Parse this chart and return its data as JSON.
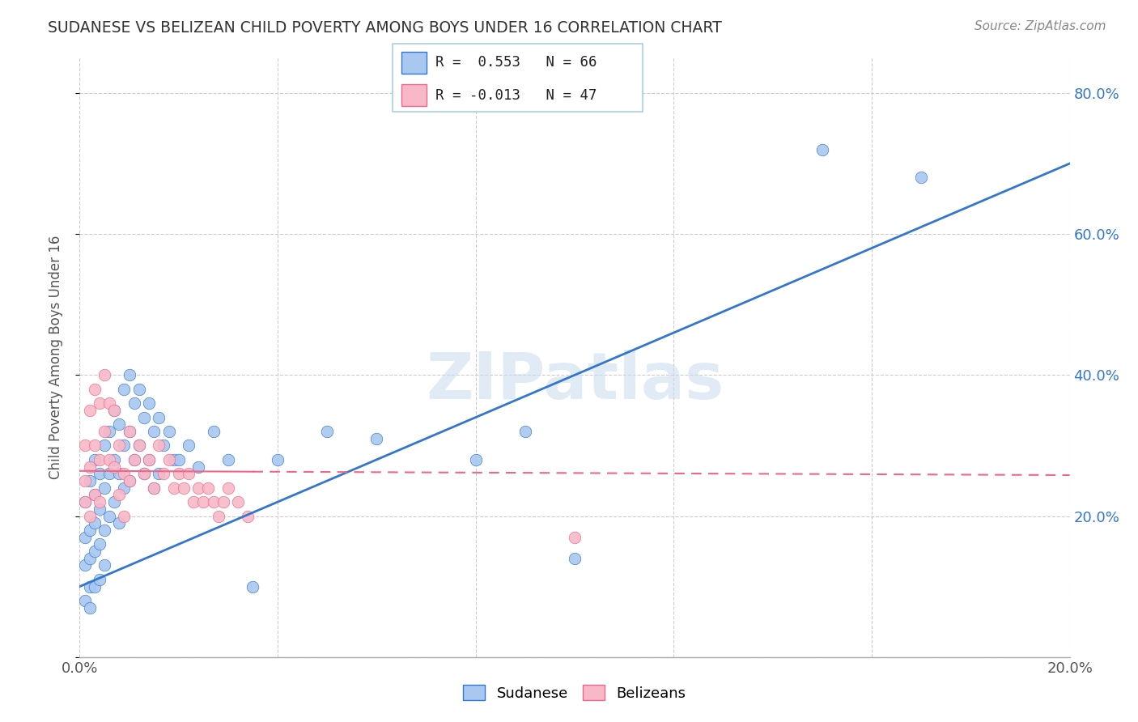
{
  "title": "SUDANESE VS BELIZEAN CHILD POVERTY AMONG BOYS UNDER 16 CORRELATION CHART",
  "source": "Source: ZipAtlas.com",
  "ylabel": "Child Poverty Among Boys Under 16",
  "xlim": [
    0.0,
    0.2
  ],
  "ylim": [
    0.0,
    0.85
  ],
  "xticks": [
    0.0,
    0.04,
    0.08,
    0.12,
    0.16,
    0.2
  ],
  "yticks": [
    0.0,
    0.2,
    0.4,
    0.6,
    0.8
  ],
  "sudanese_R": 0.553,
  "sudanese_N": 66,
  "belizean_R": -0.013,
  "belizean_N": 47,
  "blue_color": "#A8C8F0",
  "pink_color": "#F8B8C8",
  "blue_line_color": "#3377CC",
  "pink_line_color": "#EE6688",
  "watermark": "ZIPatlas",
  "background_color": "#FFFFFF",
  "sudanese_x": [
    0.001,
    0.001,
    0.001,
    0.001,
    0.002,
    0.002,
    0.002,
    0.002,
    0.002,
    0.003,
    0.003,
    0.003,
    0.003,
    0.003,
    0.004,
    0.004,
    0.004,
    0.004,
    0.005,
    0.005,
    0.005,
    0.005,
    0.006,
    0.006,
    0.006,
    0.007,
    0.007,
    0.007,
    0.008,
    0.008,
    0.008,
    0.009,
    0.009,
    0.009,
    0.01,
    0.01,
    0.01,
    0.011,
    0.011,
    0.012,
    0.012,
    0.013,
    0.013,
    0.014,
    0.014,
    0.015,
    0.015,
    0.016,
    0.016,
    0.017,
    0.018,
    0.019,
    0.02,
    0.022,
    0.024,
    0.027,
    0.03,
    0.035,
    0.04,
    0.05,
    0.06,
    0.08,
    0.09,
    0.1,
    0.15,
    0.17
  ],
  "sudanese_y": [
    0.22,
    0.17,
    0.13,
    0.08,
    0.25,
    0.18,
    0.14,
    0.1,
    0.07,
    0.28,
    0.23,
    0.19,
    0.15,
    0.1,
    0.26,
    0.21,
    0.16,
    0.11,
    0.3,
    0.24,
    0.18,
    0.13,
    0.32,
    0.26,
    0.2,
    0.35,
    0.28,
    0.22,
    0.33,
    0.26,
    0.19,
    0.38,
    0.3,
    0.24,
    0.4,
    0.32,
    0.25,
    0.36,
    0.28,
    0.38,
    0.3,
    0.34,
    0.26,
    0.36,
    0.28,
    0.32,
    0.24,
    0.34,
    0.26,
    0.3,
    0.32,
    0.28,
    0.28,
    0.3,
    0.27,
    0.32,
    0.28,
    0.1,
    0.28,
    0.32,
    0.31,
    0.28,
    0.32,
    0.14,
    0.72,
    0.68
  ],
  "belizean_x": [
    0.001,
    0.001,
    0.001,
    0.002,
    0.002,
    0.002,
    0.003,
    0.003,
    0.003,
    0.004,
    0.004,
    0.004,
    0.005,
    0.005,
    0.006,
    0.006,
    0.007,
    0.007,
    0.008,
    0.008,
    0.009,
    0.009,
    0.01,
    0.01,
    0.011,
    0.012,
    0.013,
    0.014,
    0.015,
    0.016,
    0.017,
    0.018,
    0.019,
    0.02,
    0.021,
    0.022,
    0.023,
    0.024,
    0.025,
    0.026,
    0.027,
    0.028,
    0.029,
    0.03,
    0.032,
    0.034,
    0.1
  ],
  "belizean_y": [
    0.25,
    0.3,
    0.22,
    0.35,
    0.27,
    0.2,
    0.38,
    0.3,
    0.23,
    0.36,
    0.28,
    0.22,
    0.4,
    0.32,
    0.36,
    0.28,
    0.35,
    0.27,
    0.3,
    0.23,
    0.26,
    0.2,
    0.32,
    0.25,
    0.28,
    0.3,
    0.26,
    0.28,
    0.24,
    0.3,
    0.26,
    0.28,
    0.24,
    0.26,
    0.24,
    0.26,
    0.22,
    0.24,
    0.22,
    0.24,
    0.22,
    0.2,
    0.22,
    0.24,
    0.22,
    0.2,
    0.17
  ],
  "blue_trend_x0": 0.0,
  "blue_trend_y0": 0.1,
  "blue_trend_x1": 0.2,
  "blue_trend_y1": 0.7,
  "pink_trend_x0": 0.0,
  "pink_trend_y0": 0.264,
  "pink_trend_x1": 0.2,
  "pink_trend_y1": 0.258
}
